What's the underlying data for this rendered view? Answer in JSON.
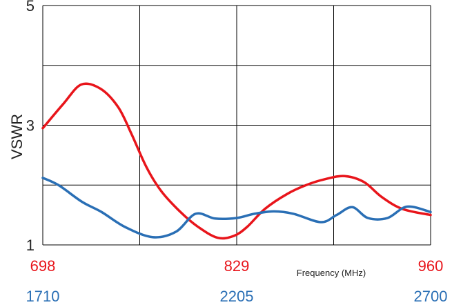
{
  "chart_data": {
    "type": "line",
    "ylabel": "VSWR",
    "xlabel": "Frequency (MHz)",
    "ylim": [
      1,
      5
    ],
    "y_ticks": [
      1,
      3,
      5
    ],
    "grid": true,
    "grid_divisions": {
      "x": 4,
      "y": 4
    },
    "x_axes": [
      {
        "ticks": [
          "698",
          "829",
          "960"
        ],
        "range": [
          698,
          960
        ],
        "color": "#e8151b"
      },
      {
        "ticks": [
          "1710",
          "2205",
          "2700"
        ],
        "range": [
          1710,
          2700
        ],
        "color": "#2a6fb5"
      }
    ],
    "series": [
      {
        "color": "#e8151b",
        "axis": 0,
        "x": [
          698,
          712,
          724,
          737,
          749,
          758,
          768,
          778,
          791,
          803,
          816,
          827,
          836,
          848,
          863,
          876,
          889,
          902,
          915,
          927,
          941,
          960
        ],
        "y": [
          2.95,
          3.36,
          3.68,
          3.61,
          3.3,
          2.85,
          2.3,
          1.9,
          1.55,
          1.3,
          1.12,
          1.15,
          1.3,
          1.6,
          1.85,
          2.0,
          2.1,
          2.15,
          2.05,
          1.8,
          1.6,
          1.5
        ]
      },
      {
        "color": "#2a6fb5",
        "axis": 1,
        "x": [
          1710,
          1750,
          1810,
          1860,
          1920,
          1990,
          2050,
          2100,
          2150,
          2205,
          2250,
          2300,
          2350,
          2420,
          2460,
          2500,
          2540,
          2590,
          2640,
          2700
        ],
        "y": [
          2.12,
          2.0,
          1.72,
          1.55,
          1.3,
          1.13,
          1.22,
          1.52,
          1.44,
          1.45,
          1.52,
          1.56,
          1.52,
          1.38,
          1.5,
          1.63,
          1.45,
          1.45,
          1.64,
          1.55
        ]
      }
    ]
  }
}
